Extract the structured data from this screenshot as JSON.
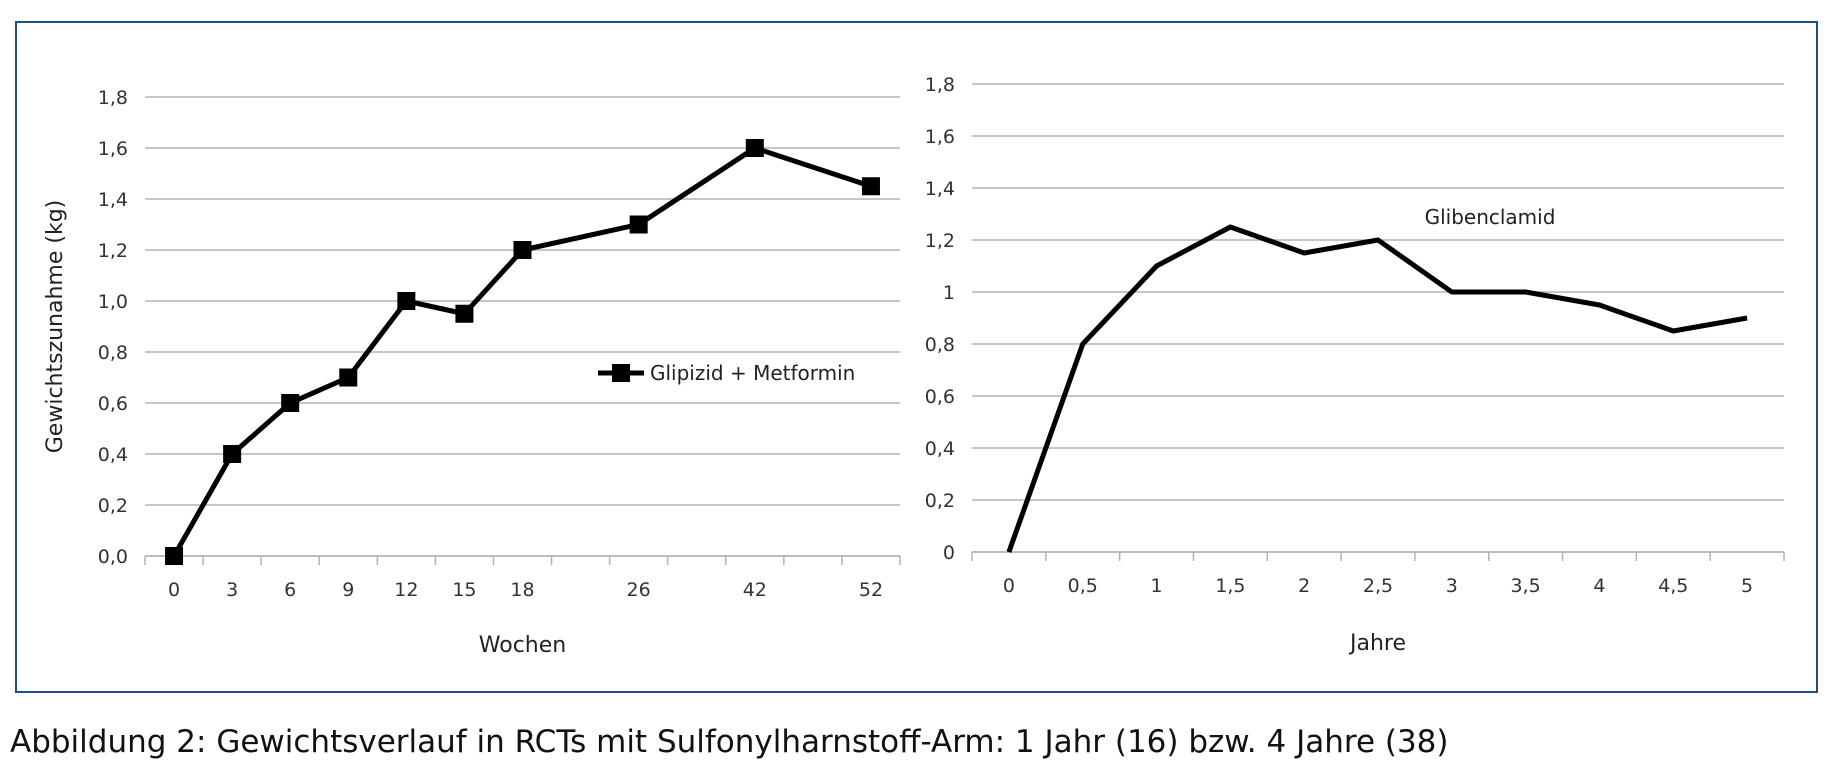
{
  "caption": "Abbildung 2: Gewichtsverlauf in RCTs mit Sulfonylharnstoff-Arm: 1 Jahr (16) bzw. 4 Jahre (38)",
  "colors": {
    "frame": "#1f4e8c",
    "line": "#000000",
    "grid": "#b3b3b3"
  },
  "chart_data": [
    {
      "type": "line",
      "xlabel": "Wochen",
      "ylabel": "Gewichtszunahme (kg)",
      "ylim": [
        0,
        1.8
      ],
      "grid": true,
      "legend_position": "right",
      "y_tick_labels": [
        "0,0",
        "0,2",
        "0,4",
        "0,6",
        "0,8",
        "1,0",
        "1,2",
        "1,4",
        "1,6",
        "1,8"
      ],
      "categories": [
        "0",
        "3",
        "6",
        "9",
        "12",
        "15",
        "18",
        "",
        "26",
        "",
        "42",
        "",
        "52"
      ],
      "series": [
        {
          "name": "Glipizid + Metformin",
          "marker": "square",
          "points": [
            {
              "x": "0",
              "y": 0.0
            },
            {
              "x": "3",
              "y": 0.4
            },
            {
              "x": "6",
              "y": 0.6
            },
            {
              "x": "9",
              "y": 0.7
            },
            {
              "x": "12",
              "y": 1.0
            },
            {
              "x": "15",
              "y": 0.95
            },
            {
              "x": "18",
              "y": 1.2
            },
            {
              "x": "26",
              "y": 1.3
            },
            {
              "x": "42",
              "y": 1.6
            },
            {
              "x": "52",
              "y": 1.45
            }
          ]
        }
      ]
    },
    {
      "type": "line",
      "xlabel": "Jahre",
      "ylabel": "",
      "ylim": [
        0,
        1.8
      ],
      "grid": true,
      "y_tick_labels": [
        "0",
        "0,2",
        "0,4",
        "0,6",
        "0,8",
        "1",
        "1,2",
        "1,4",
        "1,6",
        "1,8"
      ],
      "categories": [
        "0",
        "0,5",
        "1",
        "1,5",
        "2",
        "2,5",
        "3",
        "3,5",
        "4",
        "4,5",
        "5"
      ],
      "series": [
        {
          "name": "Glibenclamid",
          "marker": "none",
          "values": [
            0,
            0.8,
            1.1,
            1.25,
            1.15,
            1.2,
            1.0,
            1.0,
            0.95,
            0.85,
            0.9
          ]
        }
      ]
    }
  ]
}
